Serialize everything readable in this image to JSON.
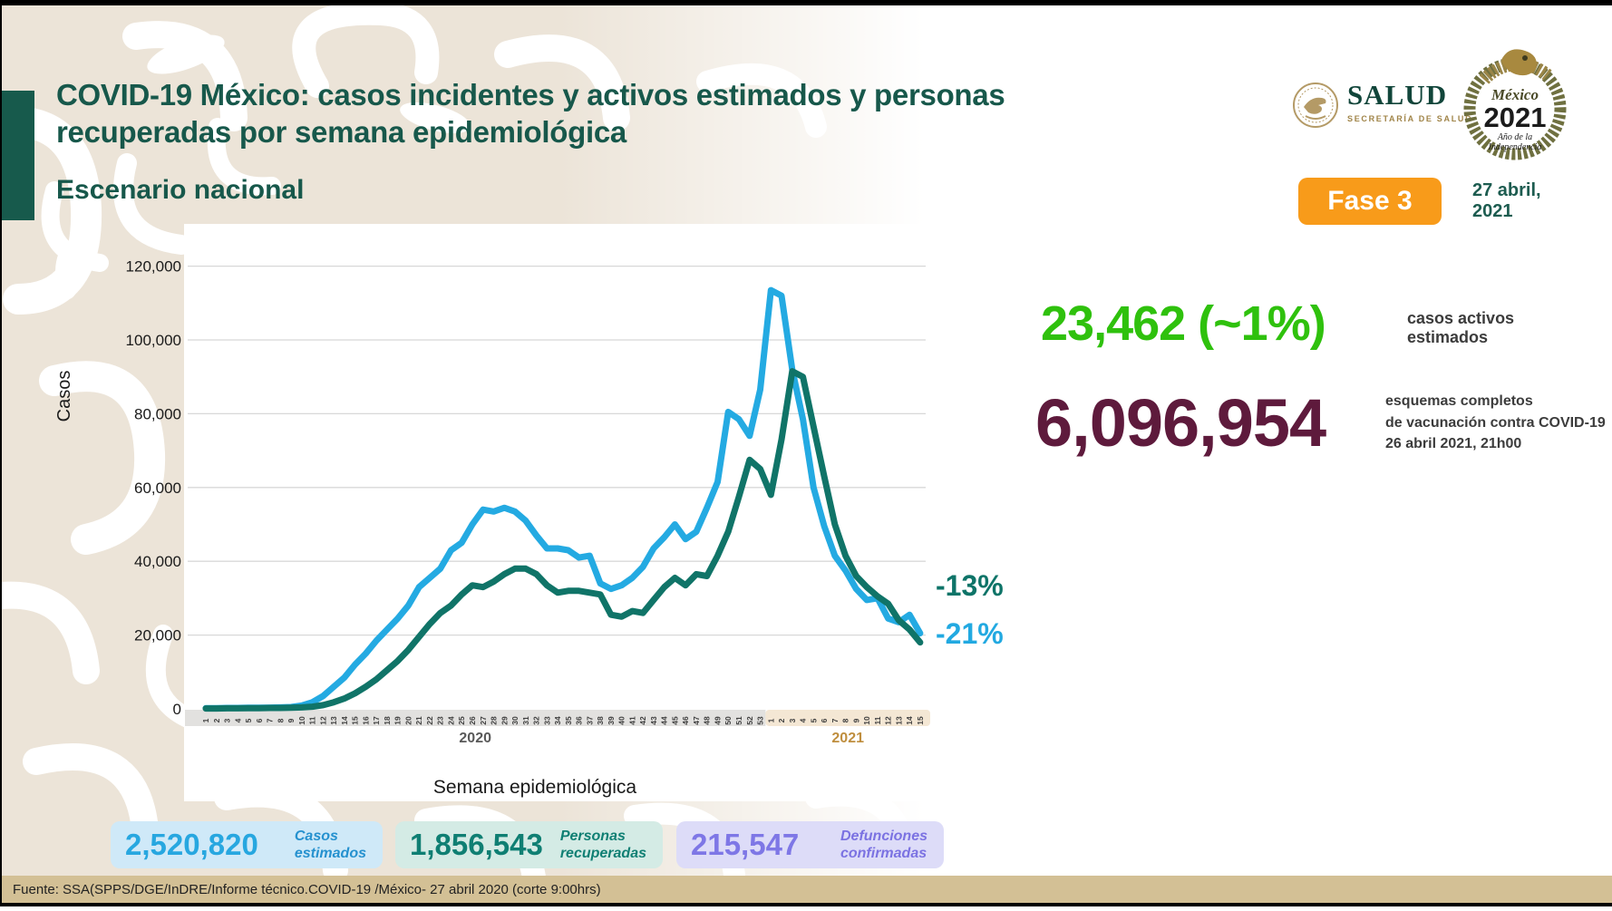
{
  "slide": {
    "title_line1": "COVID-19 México: casos incidentes y activos estimados y personas",
    "title_line2": "recuperadas por semana epidemiológica",
    "subtitle": "Escenario nacional",
    "accent_color": "#17584b"
  },
  "logos": {
    "salud": {
      "name": "SALUD",
      "subtitle": "SECRETARÍA DE SALUD"
    },
    "mexico2021": {
      "country": "México",
      "year": "2021",
      "motto_line1": "Año de la",
      "motto_line2": "Independencia"
    }
  },
  "phase_badge": {
    "label": "Fase 3",
    "color": "#f89b1a"
  },
  "report_date": {
    "line1": "27 abril,",
    "line2": "2021"
  },
  "kpis": {
    "active_cases": {
      "value": "23,462 (~1%)",
      "label_line1": "casos activos",
      "label_line2": "estimados",
      "color": "#2fc10d"
    },
    "vaccination": {
      "value": "6,096,954",
      "label_line1": "esquemas completos",
      "label_line2": "de vacunación contra COVID-19",
      "label_line3": "26 abril 2021, 21h00",
      "color": "#5e1a3c"
    }
  },
  "chart_data": {
    "type": "line",
    "title": "",
    "xlabel": "Semana epidemiológica",
    "ylabel": "Casos",
    "ylim": [
      0,
      120000
    ],
    "ytick_interval": 20000,
    "ytick_labels": [
      "0",
      "20,000",
      "40,000",
      "60,000",
      "80,000",
      "100,000",
      "120,000"
    ],
    "grid": true,
    "legend_position": "none",
    "x_groups": [
      {
        "year": "2020",
        "weeks": 53,
        "band_color": "#e2e1df",
        "label_color": "#595959"
      },
      {
        "year": "2021",
        "weeks": 15,
        "band_color": "#f4e7d4",
        "label_color": "#bf8e3e"
      }
    ],
    "categories": [
      "1",
      "2",
      "3",
      "4",
      "5",
      "6",
      "7",
      "8",
      "9",
      "10",
      "11",
      "12",
      "13",
      "14",
      "15",
      "16",
      "17",
      "18",
      "19",
      "20",
      "21",
      "22",
      "23",
      "24",
      "25",
      "26",
      "27",
      "28",
      "29",
      "30",
      "31",
      "32",
      "33",
      "34",
      "35",
      "36",
      "37",
      "38",
      "39",
      "40",
      "41",
      "42",
      "43",
      "44",
      "45",
      "46",
      "47",
      "48",
      "49",
      "50",
      "51",
      "52",
      "53",
      "1",
      "2",
      "3",
      "4",
      "5",
      "6",
      "7",
      "8",
      "9",
      "10",
      "11",
      "12",
      "13",
      "14",
      "15"
    ],
    "series": [
      {
        "name": "Casos incidentes estimados",
        "color": "#24aae2",
        "values": [
          200,
          200,
          250,
          250,
          300,
          300,
          350,
          400,
          500,
          900,
          1800,
          3500,
          6000,
          8500,
          12000,
          15000,
          18500,
          21500,
          24500,
          28000,
          33000,
          35500,
          38000,
          43000,
          45000,
          50000,
          54000,
          53500,
          54500,
          53500,
          51000,
          47000,
          43500,
          43500,
          43000,
          41000,
          41500,
          34000,
          32500,
          33500,
          35500,
          38500,
          43500,
          46500,
          50000,
          46000,
          48000,
          54500,
          61500,
          80500,
          78500,
          74000,
          86500,
          113500,
          112000,
          92000,
          78500,
          60000,
          49500,
          41500,
          37500,
          32500,
          29500,
          30000,
          24500,
          23500,
          25500,
          20500
        ]
      },
      {
        "name": "Personas recuperadas",
        "color": "#107468",
        "values": [
          100,
          100,
          150,
          150,
          200,
          200,
          250,
          250,
          300,
          400,
          600,
          1000,
          1800,
          2800,
          4200,
          6000,
          8000,
          10500,
          13000,
          16000,
          19500,
          23000,
          26000,
          28000,
          31000,
          33500,
          33000,
          34500,
          36500,
          38000,
          38000,
          36500,
          33500,
          31500,
          32000,
          32000,
          31500,
          31000,
          25500,
          25000,
          26500,
          26000,
          29500,
          33000,
          35500,
          33500,
          36500,
          36000,
          41500,
          48000,
          57500,
          67500,
          65000,
          58000,
          73000,
          91500,
          90000,
          76500,
          63000,
          50000,
          41500,
          36000,
          33000,
          30500,
          28500,
          24000,
          21500,
          18000
        ]
      }
    ],
    "annotations": [
      {
        "text": "-13%",
        "color": "#0e7468",
        "refers_to": "Personas recuperadas"
      },
      {
        "text": "-21%",
        "color": "#22a9e1",
        "refers_to": "Casos incidentes estimados"
      }
    ]
  },
  "stat_boxes": [
    {
      "value": "2,520,820",
      "label_line1": "Casos",
      "label_line2": "estimados",
      "bg": "#cfe9f8",
      "fg": "#27a7e0"
    },
    {
      "value": "1,856,543",
      "label_line1": "Personas",
      "label_line2": "recuperadas",
      "bg": "#d4ebe5",
      "fg": "#0f7f73"
    },
    {
      "value": "215,547",
      "label_line1": "Defunciones",
      "label_line2": "confirmadas",
      "bg": "#dddcf8",
      "fg": "#7b72e2"
    }
  ],
  "footer": {
    "source_text": "Fuente: SSA(SPPS/DGE/InDRE/Informe técnico.COVID-19 /México- 27 abril 2020 (corte 9:00hrs)"
  }
}
